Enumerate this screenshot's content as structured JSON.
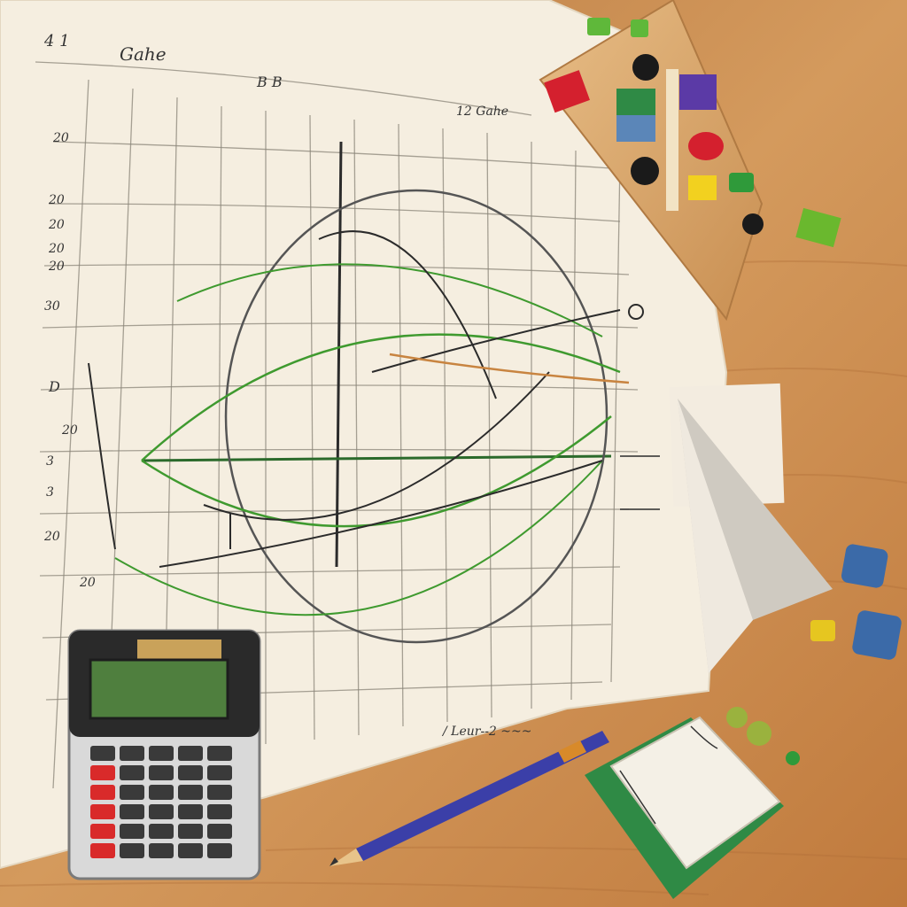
{
  "scene": {
    "description_free": true,
    "colors": {
      "table": "#c8894f",
      "table_light": "#e2b07a",
      "paper": "#f5eee0",
      "grid": "#8a8478",
      "ink": "#2b2b2b",
      "curve_green": "#3f9a2f",
      "calculator_body": "#d9d9d9",
      "calculator_screen": "#4f7f3e",
      "pencil": "#3b3fa8",
      "book_cover": "#2f8a45"
    },
    "icons": [
      "calculator-icon",
      "pencil-icon",
      "notebook-icon",
      "paper-plane-icon",
      "building-blocks-icon"
    ]
  },
  "handwriting": {
    "top_left": "4 1",
    "title": "Gahe",
    "mid_top": "B B",
    "right_note": "12 Gahe",
    "left_labels": [
      "20",
      "20",
      "20",
      "20",
      "20",
      "30",
      "D",
      "20",
      "3",
      "3",
      "20",
      "20"
    ],
    "bottom_note": "/ Leur--2 ~~~"
  }
}
